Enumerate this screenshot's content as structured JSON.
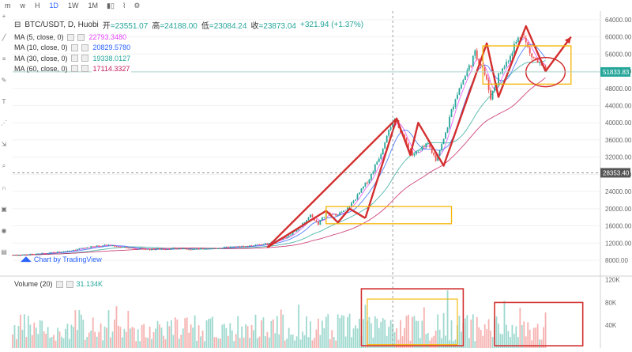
{
  "toolbar": {
    "items": [
      "m",
      "w",
      "H",
      "1D",
      "1W",
      "1M"
    ],
    "active": "1D",
    "icons": [
      "bar-style-icon",
      "indicator-icon",
      "settings-icon"
    ]
  },
  "legend": {
    "symbol": "BTC/USDT, D, Huobi",
    "open_label": "开",
    "open": "=23551.07",
    "high_label": "高",
    "high": "=24188.00",
    "low_label": "低",
    "low": "=23084.24",
    "close_label": "收",
    "close": "=23873.04",
    "change": "+321.94 (+1.37%)",
    "ma": [
      {
        "label": "MA (5, close, 0)",
        "value": "22793.3480",
        "color": "#e040fb"
      },
      {
        "label": "MA (10, close, 0)",
        "value": "20829.5780",
        "color": "#2962ff"
      },
      {
        "label": "MA (30, close, 0)",
        "value": "19338.0127",
        "color": "#26a69a"
      },
      {
        "label": "MA (60, close, 0)",
        "value": "17114.3327",
        "color": "#c2185b"
      }
    ]
  },
  "watermark": "Chart by TradingView",
  "volume_legend": {
    "label": "Volume (20)",
    "value": "31.134K"
  },
  "colors": {
    "up": "#26a69a",
    "down": "#ef5350",
    "trend": "#d32f2f",
    "box": "#f5b400"
  },
  "chart_data": [
    {
      "type": "candlestick",
      "title": "BTC/USDT, D, Huobi",
      "y_ticks": [
        64000,
        60000,
        56000,
        52000,
        48000,
        44000,
        40000,
        36000,
        32000,
        28000,
        24000,
        20000,
        16000,
        12000,
        8000
      ],
      "y_tick_labels": [
        "64000.00",
        "60000.00",
        "56000.00",
        "52000.00",
        "48000.00",
        "44000.00",
        "40000.00",
        "36000.00",
        "32000.00",
        "28000.00",
        "24000.00",
        "20000.00",
        "16000.00",
        "12000.00",
        "8000.00"
      ],
      "ylim": [
        4500,
        66000
      ],
      "price_labels": [
        "51833.83",
        "28353.40"
      ],
      "close_path": [
        {
          "t": 0,
          "p": 9200
        },
        {
          "t": 12,
          "p": 9400
        },
        {
          "t": 24,
          "p": 9900
        },
        {
          "t": 36,
          "p": 10800
        },
        {
          "t": 48,
          "p": 11600
        },
        {
          "t": 58,
          "p": 10900
        },
        {
          "t": 70,
          "p": 10500
        },
        {
          "t": 82,
          "p": 10700
        },
        {
          "t": 94,
          "p": 10600
        },
        {
          "t": 106,
          "p": 10900
        },
        {
          "t": 118,
          "p": 11200
        },
        {
          "t": 130,
          "p": 11800
        },
        {
          "t": 140,
          "p": 13500
        },
        {
          "t": 146,
          "p": 15500
        },
        {
          "t": 152,
          "p": 18500
        },
        {
          "t": 156,
          "p": 16500
        },
        {
          "t": 160,
          "p": 19000
        },
        {
          "t": 164,
          "p": 18500
        },
        {
          "t": 170,
          "p": 19500
        },
        {
          "t": 176,
          "p": 23000
        },
        {
          "t": 182,
          "p": 27000
        },
        {
          "t": 188,
          "p": 33000
        },
        {
          "t": 192,
          "p": 39000
        },
        {
          "t": 196,
          "p": 40500
        },
        {
          "t": 200,
          "p": 36000
        },
        {
          "t": 204,
          "p": 32500
        },
        {
          "t": 208,
          "p": 33500
        },
        {
          "t": 212,
          "p": 35000
        },
        {
          "t": 216,
          "p": 31500
        },
        {
          "t": 220,
          "p": 36000
        },
        {
          "t": 226,
          "p": 46000
        },
        {
          "t": 232,
          "p": 52000
        },
        {
          "t": 236,
          "p": 56000
        },
        {
          "t": 240,
          "p": 53000
        },
        {
          "t": 244,
          "p": 46000
        },
        {
          "t": 248,
          "p": 51000
        },
        {
          "t": 252,
          "p": 54000
        },
        {
          "t": 256,
          "p": 58000
        },
        {
          "t": 260,
          "p": 61000
        },
        {
          "t": 264,
          "p": 56000
        },
        {
          "t": 268,
          "p": 54000
        },
        {
          "t": 272,
          "p": 51833
        }
      ],
      "ma_lines": [
        {
          "name": "MA (5, close, 0)",
          "lag": 2
        },
        {
          "name": "MA (10, close, 0)",
          "lag": 5
        },
        {
          "name": "MA (30, close, 0)",
          "lag": 14
        },
        {
          "name": "MA (60, close, 0)",
          "lag": 28
        }
      ],
      "trend_lines": [
        [
          {
            "t": 130,
            "p": 11000
          },
          {
            "t": 160,
            "p": 19500
          },
          {
            "t": 166,
            "p": 16800
          },
          {
            "t": 172,
            "p": 20000
          },
          {
            "t": 180,
            "p": 17800
          }
        ],
        [
          {
            "t": 130,
            "p": 11000
          },
          {
            "t": 196,
            "p": 41000
          }
        ],
        [
          {
            "t": 180,
            "p": 17800
          },
          {
            "t": 196,
            "p": 41000
          },
          {
            "t": 203,
            "p": 32500
          },
          {
            "t": 207,
            "p": 40000
          },
          {
            "t": 220,
            "p": 30000
          },
          {
            "t": 242,
            "p": 58500
          },
          {
            "t": 248,
            "p": 46000
          },
          {
            "t": 262,
            "p": 62500
          },
          {
            "t": 272,
            "p": 52000
          },
          {
            "t": 285,
            "p": 60000
          }
        ]
      ],
      "boxes": [
        {
          "t0": 160,
          "t1": 224,
          "p0": 16500,
          "p1": 20500,
          "color": "#f5b400"
        },
        {
          "t0": 240,
          "t1": 285,
          "p0": 49000,
          "p1": 57900,
          "color": "#f5b400"
        }
      ],
      "ellipse": {
        "t": 272,
        "p": 51800,
        "rt": 10,
        "rp": 3400
      },
      "crosshair": {
        "t": 194,
        "price": 28353.4
      }
    },
    {
      "type": "bar",
      "title": "Volume (20)",
      "y_ticks": [
        120000,
        80000,
        40000
      ],
      "y_tick_labels": [
        "120K",
        "80K",
        "40K"
      ],
      "ylim": [
        0,
        125000
      ],
      "boxes": [
        {
          "t0": 178,
          "t1": 230,
          "v0": 4000,
          "v1": 104000,
          "color": "#d32f2f"
        },
        {
          "t0": 181,
          "t1": 227,
          "v0": 6000,
          "v1": 86000,
          "color": "#f5b400"
        },
        {
          "t0": 246,
          "t1": 291,
          "v0": 4000,
          "v1": 80000,
          "color": "#d32f2f"
        }
      ]
    }
  ]
}
